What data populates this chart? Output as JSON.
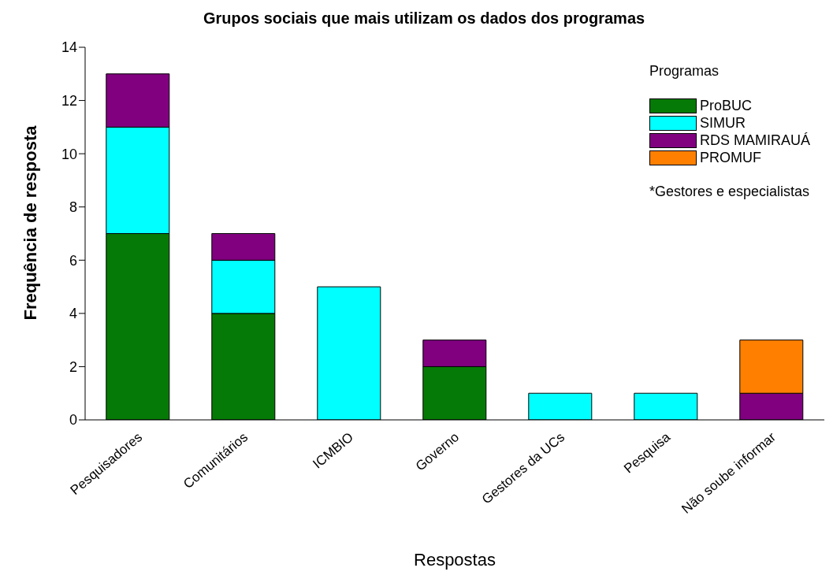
{
  "chart_data": {
    "type": "bar",
    "title": "Grupos sociais que mais utilizam os dados dos programas",
    "xlabel": "Respostas",
    "ylabel": "Frequência de resposta",
    "legend_title": "Programas",
    "annotations": [
      "*Gestores e especialistas"
    ],
    "categories": [
      "Pesquisadores",
      "Comunitários",
      "ICMBIO",
      "Governo",
      "Gestores da UCs",
      "Pesquisa",
      "Não soube informar"
    ],
    "stacked": true,
    "ylim": [
      0,
      14
    ],
    "yticks": [
      0,
      2,
      4,
      6,
      8,
      10,
      12,
      14
    ],
    "grid": false,
    "legend": "top right",
    "series": [
      {
        "name": "ProBUC",
        "color": "#067a06",
        "values": [
          7,
          4,
          null,
          2,
          null,
          null,
          null
        ]
      },
      {
        "name": "SIMUR",
        "color": "#00ffff",
        "values": [
          4,
          2,
          5,
          null,
          1,
          1,
          null
        ]
      },
      {
        "name": "RDS MAMIRAUÁ",
        "color": "#800080",
        "values": [
          2,
          1,
          null,
          1,
          null,
          null,
          1
        ]
      },
      {
        "name": "PROMUF",
        "color": "#ff8000",
        "values": [
          null,
          null,
          null,
          null,
          null,
          null,
          2
        ]
      }
    ]
  }
}
